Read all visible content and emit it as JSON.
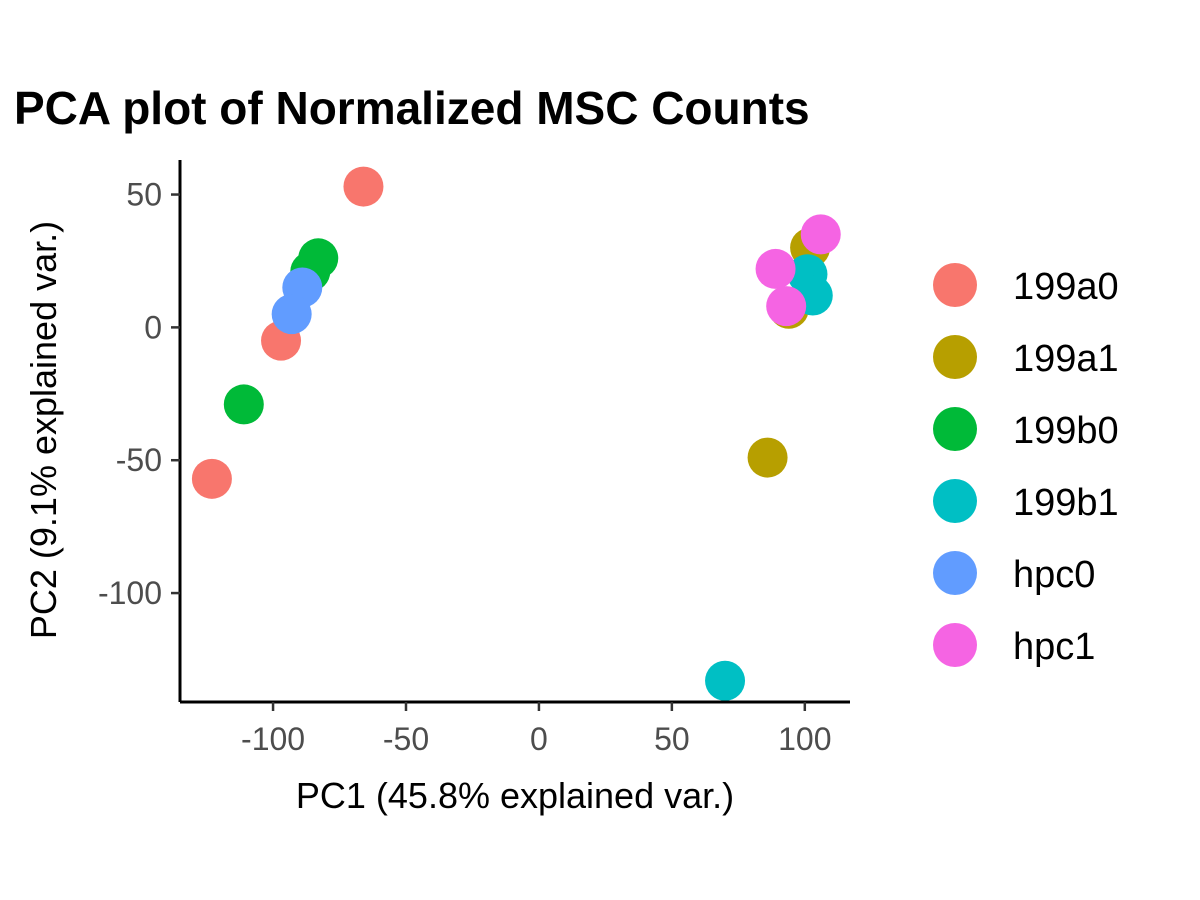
{
  "chart_data": {
    "type": "scatter",
    "title": "PCA plot of Normalized MSC Counts",
    "xlabel": "PC1 (45.8% explained var.)",
    "ylabel": "PC2 (9.1% explained var.)",
    "xlim": [
      -135,
      117
    ],
    "ylim": [
      -141,
      63
    ],
    "x_ticks": [
      -100,
      -50,
      0,
      50,
      100
    ],
    "y_ticks": [
      -100,
      -50,
      0,
      50
    ],
    "grid": false,
    "legend_position": "right",
    "series": [
      {
        "name": "199a0",
        "color": "#F8766D",
        "points": [
          {
            "x": -66,
            "y": 53
          },
          {
            "x": -97,
            "y": -5
          },
          {
            "x": -123,
            "y": -57
          }
        ]
      },
      {
        "name": "199a1",
        "color": "#B79F00",
        "points": [
          {
            "x": 102,
            "y": 30
          },
          {
            "x": 94,
            "y": 7
          },
          {
            "x": 86,
            "y": -49
          }
        ]
      },
      {
        "name": "199b0",
        "color": "#00BA38",
        "points": [
          {
            "x": -83,
            "y": 26
          },
          {
            "x": -86,
            "y": 21
          },
          {
            "x": -111,
            "y": -29
          }
        ]
      },
      {
        "name": "199b1",
        "color": "#00BFC4",
        "points": [
          {
            "x": 101,
            "y": 20
          },
          {
            "x": 103,
            "y": 12
          },
          {
            "x": 70,
            "y": -133
          }
        ]
      },
      {
        "name": "hpc0",
        "color": "#619CFF",
        "points": [
          {
            "x": -89,
            "y": 15
          },
          {
            "x": -93,
            "y": 5
          }
        ]
      },
      {
        "name": "hpc1",
        "color": "#F564E3",
        "points": [
          {
            "x": 106,
            "y": 35
          },
          {
            "x": 89,
            "y": 22
          },
          {
            "x": 93,
            "y": 8
          }
        ]
      }
    ]
  }
}
